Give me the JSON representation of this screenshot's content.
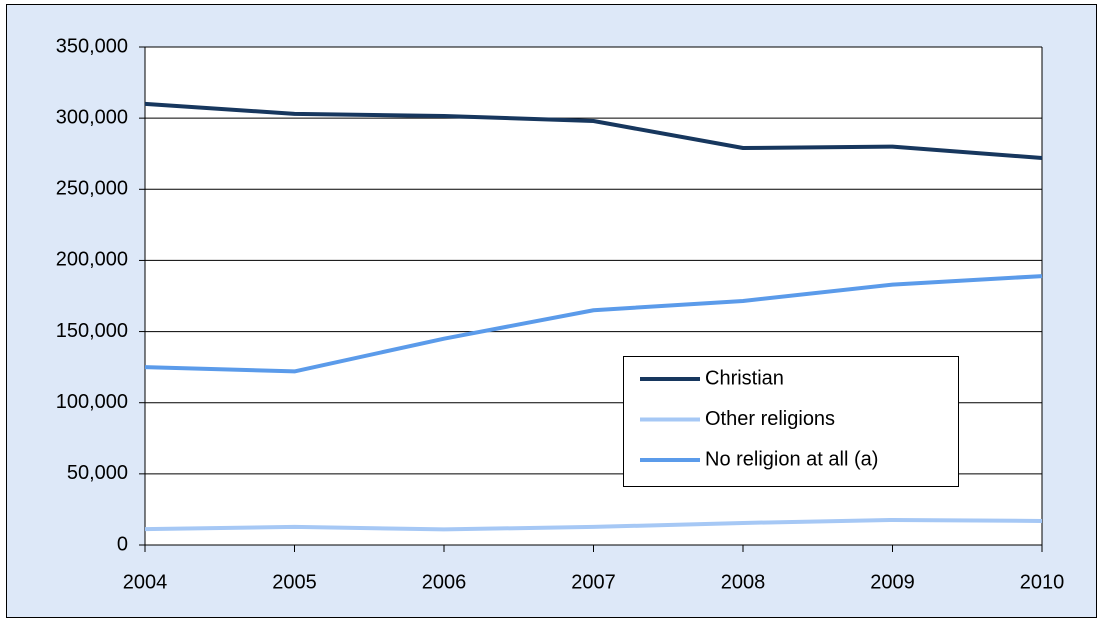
{
  "chart_data": {
    "type": "line",
    "x": [
      2004,
      2005,
      2006,
      2007,
      2008,
      2009,
      2010
    ],
    "xlim": [
      2004,
      2010
    ],
    "xticks": [
      2004,
      2005,
      2006,
      2007,
      2008,
      2009,
      2010
    ],
    "ylim": [
      0,
      350000
    ],
    "yticks": [
      0,
      {
        "value": 50000,
        "label": "50,000"
      },
      {
        "value": 100000,
        "label": "100,000"
      },
      {
        "value": 150000,
        "label": "150,000"
      },
      {
        "value": 200000,
        "label": "200,000"
      },
      {
        "value": 250000,
        "label": "250,000"
      },
      {
        "value": 300000,
        "label": "300,000"
      },
      {
        "value": 350000,
        "label": "350,000"
      }
    ],
    "grid": true,
    "series": [
      {
        "name": "Christian",
        "color": "#17375e",
        "values": [
          310000,
          303000,
          301500,
          298000,
          279000,
          280000,
          272000
        ]
      },
      {
        "name": "Other religions",
        "color": "#a6c8f5",
        "values": [
          11200,
          12700,
          11000,
          12700,
          15500,
          17600,
          16900
        ]
      },
      {
        "name": "No religion at all (a)",
        "color": "#5b9bea",
        "values": [
          125000,
          122000,
          145000,
          165000,
          171500,
          183000,
          189000
        ]
      }
    ]
  }
}
